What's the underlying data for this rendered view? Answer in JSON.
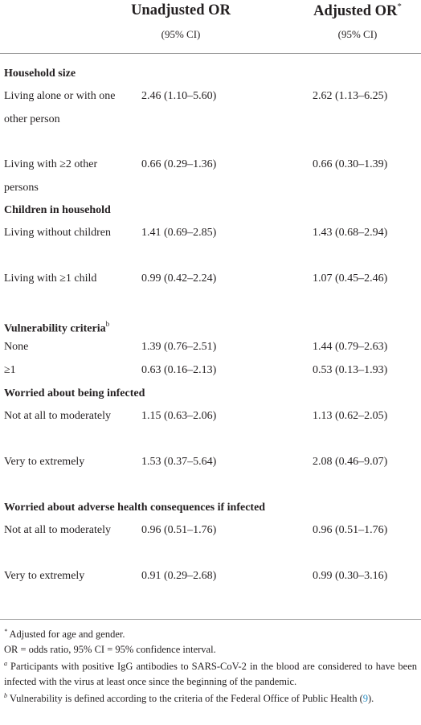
{
  "header": {
    "col1_title": "Unadjusted OR",
    "col1_sub": "(95% CI)",
    "col2_title": "Adjusted OR",
    "col2_mark": "*",
    "col2_sub": "(95% CI)"
  },
  "sections": [
    {
      "title": "Household size",
      "rows": [
        {
          "label": "Living alone or with one other person",
          "v1": "2.46 (1.10–5.60)",
          "v2": "2.62 (1.13–6.25)"
        },
        {
          "label": "Living with ≥2 other persons",
          "v1": "0.66 (0.29–1.36)",
          "v2": "0.66 (0.30–1.39)"
        }
      ]
    },
    {
      "title": "Children in household",
      "rows": [
        {
          "label": "Living without children",
          "v1": "1.41 (0.69–2.85)",
          "v2": "1.43 (0.68–2.94)"
        },
        {
          "label": "Living with ≥1 child",
          "v1": "0.99 (0.42–2.24)",
          "v2": "1.07 (0.45–2.46)"
        }
      ]
    },
    {
      "title": "Vulnerability criteria",
      "mark": "b",
      "rows": [
        {
          "label": "None",
          "v1": "1.39 (0.76–2.51)",
          "v2": "1.44 (0.79–2.63)"
        },
        {
          "label": "≥1",
          "v1": "0.63 (0.16–2.13)",
          "v2": "0.53 (0.13–1.93)"
        }
      ]
    },
    {
      "title": "Worried about being infected",
      "rows": [
        {
          "label": "Not at all to moderately",
          "v1": "1.15 (0.63–2.06)",
          "v2": "1.13 (0.62–2.05)"
        },
        {
          "label": "Very to extremely",
          "v1": "1.53 (0.37–5.64)",
          "v2": "2.08 (0.46–9.07)"
        }
      ]
    },
    {
      "title": "Worried about adverse health consequences if infected",
      "rows": [
        {
          "label": "Not at all to moderately",
          "v1": "0.96 (0.51–1.76)",
          "v2": "0.96 (0.51–1.76)"
        },
        {
          "label": "Very to extremely",
          "v1": "0.91 (0.29–2.68)",
          "v2": "0.99 (0.30–3.16)"
        }
      ]
    }
  ],
  "footnotes": {
    "star_mark": "*",
    "star_text": "Adjusted for age and gender.",
    "abbrev": "OR = odds ratio, 95% CI = 95% confidence interval.",
    "a_mark": "a",
    "a_text": "Participants with positive IgG antibodies to SARS-CoV-2 in the blood are considered to have been infected with the virus at least once since the beginning of the pandemic.",
    "b_mark": "b",
    "b_text_before": "Vulnerability is defined according to the criteria of the Federal Office of Public Health (",
    "b_ref": "9",
    "b_text_after": ")."
  }
}
